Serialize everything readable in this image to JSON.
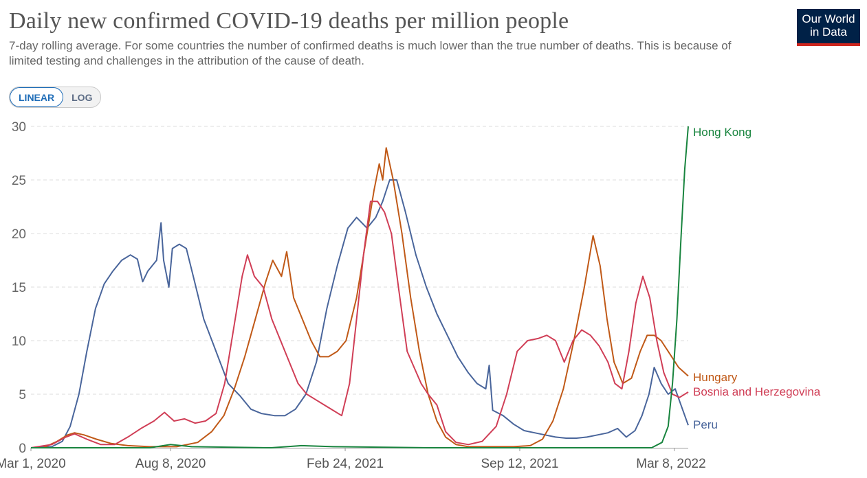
{
  "header": {
    "title": "Daily new confirmed COVID-19 deaths per million people",
    "subtitle": "7-day rolling average. For some countries the number of confirmed deaths is much lower than the true number of deaths. This is because of limited testing and challenges in the attribution of the cause of death."
  },
  "logo": {
    "line1": "Our World",
    "line2": "in Data"
  },
  "scale_toggle": {
    "linear_label": "LINEAR",
    "log_label": "LOG",
    "selected": "LINEAR"
  },
  "colors": {
    "Hong Kong": "#18843e",
    "Hungary": "#c05917",
    "Bosnia and Herzegovina": "#d03e56",
    "Peru": "#49659b",
    "grid": "#dddddd"
  },
  "chart_data": {
    "type": "line",
    "title": "Daily new confirmed COVID-19 deaths per million people",
    "x_axis": {
      "type": "date",
      "range": [
        "2020-03-01",
        "2022-03-24"
      ],
      "tick_labels": [
        "Mar 1, 2020",
        "Aug 8, 2020",
        "Feb 24, 2021",
        "Sep 12, 2021",
        "Mar 8, 2022"
      ],
      "tick_dates": [
        "2020-03-01",
        "2020-08-08",
        "2021-02-24",
        "2021-09-12",
        "2022-03-08"
      ]
    },
    "y_axis": {
      "range": [
        0,
        30
      ],
      "ticks": [
        0,
        5,
        10,
        15,
        20,
        25,
        30
      ]
    },
    "grid": "horizontal dashed",
    "legend": "inline labels at line ends (right)",
    "series": [
      {
        "name": "Peru",
        "points": [
          [
            "2020-03-01",
            0
          ],
          [
            "2020-03-25",
            0.1
          ],
          [
            "2020-04-06",
            0.6
          ],
          [
            "2020-04-15",
            2
          ],
          [
            "2020-04-25",
            5
          ],
          [
            "2020-05-04",
            9
          ],
          [
            "2020-05-14",
            13
          ],
          [
            "2020-05-24",
            15.3
          ],
          [
            "2020-06-03",
            16.5
          ],
          [
            "2020-06-13",
            17.5
          ],
          [
            "2020-06-23",
            18
          ],
          [
            "2020-07-01",
            17.6
          ],
          [
            "2020-07-07",
            15.5
          ],
          [
            "2020-07-13",
            16.5
          ],
          [
            "2020-07-23",
            17.5
          ],
          [
            "2020-07-28",
            21
          ],
          [
            "2020-07-31",
            17.5
          ],
          [
            "2020-08-06",
            15
          ],
          [
            "2020-08-10",
            18.6
          ],
          [
            "2020-08-18",
            19
          ],
          [
            "2020-08-26",
            18.6
          ],
          [
            "2020-09-03",
            16
          ],
          [
            "2020-09-15",
            12
          ],
          [
            "2020-09-29",
            9
          ],
          [
            "2020-10-13",
            6
          ],
          [
            "2020-10-27",
            4.8
          ],
          [
            "2020-11-08",
            3.6
          ],
          [
            "2020-11-20",
            3.2
          ],
          [
            "2020-12-05",
            3
          ],
          [
            "2020-12-17",
            3
          ],
          [
            "2020-12-29",
            3.6
          ],
          [
            "2021-01-10",
            5
          ],
          [
            "2021-01-22",
            8
          ],
          [
            "2021-02-03",
            13
          ],
          [
            "2021-02-15",
            17
          ],
          [
            "2021-02-27",
            20.5
          ],
          [
            "2021-03-09",
            21.5
          ],
          [
            "2021-03-21",
            20.5
          ],
          [
            "2021-03-31",
            21.5
          ],
          [
            "2021-04-08",
            23
          ],
          [
            "2021-04-16",
            25
          ],
          [
            "2021-04-24",
            25
          ],
          [
            "2021-05-04",
            22
          ],
          [
            "2021-05-16",
            18
          ],
          [
            "2021-05-28",
            15
          ],
          [
            "2021-06-09",
            12.5
          ],
          [
            "2021-06-21",
            10.5
          ],
          [
            "2021-07-03",
            8.5
          ],
          [
            "2021-07-15",
            7
          ],
          [
            "2021-07-25",
            6
          ],
          [
            "2021-08-04",
            5.5
          ],
          [
            "2021-08-08",
            7.7
          ],
          [
            "2021-08-12",
            3.5
          ],
          [
            "2021-08-24",
            3
          ],
          [
            "2021-09-05",
            2.2
          ],
          [
            "2021-09-17",
            1.6
          ],
          [
            "2021-09-29",
            1.4
          ],
          [
            "2021-10-11",
            1.2
          ],
          [
            "2021-10-23",
            1
          ],
          [
            "2021-11-04",
            0.9
          ],
          [
            "2021-11-16",
            0.9
          ],
          [
            "2021-11-28",
            1
          ],
          [
            "2021-12-10",
            1.2
          ],
          [
            "2021-12-22",
            1.4
          ],
          [
            "2022-01-02",
            1.8
          ],
          [
            "2022-01-12",
            1
          ],
          [
            "2022-01-22",
            1.6
          ],
          [
            "2022-01-30",
            3
          ],
          [
            "2022-02-07",
            5
          ],
          [
            "2022-02-13",
            7.5
          ],
          [
            "2022-02-21",
            6
          ],
          [
            "2022-03-01",
            5
          ],
          [
            "2022-03-09",
            5.5
          ],
          [
            "2022-03-24",
            2.1
          ]
        ]
      },
      {
        "name": "Hungary",
        "points": [
          [
            "2020-03-01",
            0
          ],
          [
            "2020-03-15",
            0
          ],
          [
            "2020-03-31",
            0.6
          ],
          [
            "2020-04-12",
            1.2
          ],
          [
            "2020-04-20",
            1.4
          ],
          [
            "2020-05-01",
            1.2
          ],
          [
            "2020-05-15",
            0.8
          ],
          [
            "2020-06-01",
            0.4
          ],
          [
            "2020-06-20",
            0.2
          ],
          [
            "2020-07-15",
            0.1
          ],
          [
            "2020-08-15",
            0.1
          ],
          [
            "2020-09-08",
            0.5
          ],
          [
            "2020-09-24",
            1.5
          ],
          [
            "2020-10-08",
            3
          ],
          [
            "2020-10-20",
            5.5
          ],
          [
            "2020-11-01",
            8.5
          ],
          [
            "2020-11-13",
            12
          ],
          [
            "2020-11-25",
            15.5
          ],
          [
            "2020-12-03",
            17.5
          ],
          [
            "2020-12-13",
            16
          ],
          [
            "2020-12-19",
            18.3
          ],
          [
            "2020-12-27",
            14
          ],
          [
            "2021-01-06",
            12
          ],
          [
            "2021-01-16",
            10
          ],
          [
            "2021-01-26",
            8.5
          ],
          [
            "2021-02-05",
            8.5
          ],
          [
            "2021-02-15",
            9
          ],
          [
            "2021-02-25",
            10
          ],
          [
            "2021-03-09",
            14
          ],
          [
            "2021-03-19",
            19
          ],
          [
            "2021-03-29",
            24
          ],
          [
            "2021-04-04",
            26.5
          ],
          [
            "2021-04-08",
            25
          ],
          [
            "2021-04-12",
            28
          ],
          [
            "2021-04-20",
            25
          ],
          [
            "2021-04-30",
            20
          ],
          [
            "2021-05-10",
            14
          ],
          [
            "2021-05-20",
            9
          ],
          [
            "2021-05-30",
            5
          ],
          [
            "2021-06-09",
            2.5
          ],
          [
            "2021-06-19",
            1
          ],
          [
            "2021-07-01",
            0.3
          ],
          [
            "2021-07-15",
            0.1
          ],
          [
            "2021-08-15",
            0.1
          ],
          [
            "2021-09-05",
            0.1
          ],
          [
            "2021-09-24",
            0.2
          ],
          [
            "2021-10-08",
            0.8
          ],
          [
            "2021-10-20",
            2.5
          ],
          [
            "2021-11-01",
            5.5
          ],
          [
            "2021-11-13",
            10
          ],
          [
            "2021-11-25",
            15
          ],
          [
            "2021-12-05",
            19.8
          ],
          [
            "2021-12-13",
            17
          ],
          [
            "2021-12-21",
            12
          ],
          [
            "2021-12-29",
            8
          ],
          [
            "2022-01-08",
            6
          ],
          [
            "2022-01-18",
            6.5
          ],
          [
            "2022-01-28",
            9
          ],
          [
            "2022-02-05",
            10.5
          ],
          [
            "2022-02-13",
            10.5
          ],
          [
            "2022-02-21",
            10
          ],
          [
            "2022-03-01",
            9
          ],
          [
            "2022-03-13",
            7.5
          ],
          [
            "2022-03-24",
            6.7
          ]
        ]
      },
      {
        "name": "Bosnia and Herzegovina",
        "points": [
          [
            "2020-03-01",
            0
          ],
          [
            "2020-03-25",
            0.3
          ],
          [
            "2020-04-10",
            1
          ],
          [
            "2020-04-20",
            1.3
          ],
          [
            "2020-05-04",
            0.8
          ],
          [
            "2020-05-20",
            0.3
          ],
          [
            "2020-06-05",
            0.3
          ],
          [
            "2020-06-20",
            1
          ],
          [
            "2020-07-05",
            1.8
          ],
          [
            "2020-07-20",
            2.5
          ],
          [
            "2020-08-01",
            3.3
          ],
          [
            "2020-08-12",
            2.5
          ],
          [
            "2020-08-24",
            2.7
          ],
          [
            "2020-09-05",
            2.3
          ],
          [
            "2020-09-17",
            2.5
          ],
          [
            "2020-09-29",
            3.2
          ],
          [
            "2020-10-09",
            6
          ],
          [
            "2020-10-19",
            11
          ],
          [
            "2020-10-29",
            16
          ],
          [
            "2020-11-04",
            18
          ],
          [
            "2020-11-12",
            16
          ],
          [
            "2020-11-22",
            15
          ],
          [
            "2020-12-02",
            12
          ],
          [
            "2020-12-12",
            10
          ],
          [
            "2020-12-22",
            8
          ],
          [
            "2021-01-01",
            6
          ],
          [
            "2021-01-11",
            5
          ],
          [
            "2021-01-21",
            4.5
          ],
          [
            "2021-01-31",
            4
          ],
          [
            "2021-02-10",
            3.5
          ],
          [
            "2021-02-20",
            3
          ],
          [
            "2021-03-01",
            6
          ],
          [
            "2021-03-09",
            12
          ],
          [
            "2021-03-17",
            18
          ],
          [
            "2021-03-25",
            23
          ],
          [
            "2021-04-02",
            23
          ],
          [
            "2021-04-10",
            22
          ],
          [
            "2021-04-18",
            20
          ],
          [
            "2021-04-26",
            15
          ],
          [
            "2021-05-06",
            9
          ],
          [
            "2021-05-14",
            7.5
          ],
          [
            "2021-05-22",
            6
          ],
          [
            "2021-05-30",
            5
          ],
          [
            "2021-06-09",
            4
          ],
          [
            "2021-06-19",
            1.5
          ],
          [
            "2021-07-01",
            0.5
          ],
          [
            "2021-07-15",
            0.3
          ],
          [
            "2021-07-31",
            0.6
          ],
          [
            "2021-08-16",
            2
          ],
          [
            "2021-08-28",
            5
          ],
          [
            "2021-09-09",
            9
          ],
          [
            "2021-09-21",
            10
          ],
          [
            "2021-10-03",
            10.2
          ],
          [
            "2021-10-13",
            10.5
          ],
          [
            "2021-10-23",
            10
          ],
          [
            "2021-11-02",
            8
          ],
          [
            "2021-11-12",
            10
          ],
          [
            "2021-11-22",
            11
          ],
          [
            "2021-12-02",
            10.5
          ],
          [
            "2021-12-12",
            9.5
          ],
          [
            "2021-12-22",
            8
          ],
          [
            "2021-12-30",
            6
          ],
          [
            "2022-01-07",
            5.5
          ],
          [
            "2022-01-15",
            9
          ],
          [
            "2022-01-23",
            13.5
          ],
          [
            "2022-01-31",
            16
          ],
          [
            "2022-02-08",
            14
          ],
          [
            "2022-02-16",
            10
          ],
          [
            "2022-02-24",
            7
          ],
          [
            "2022-03-06",
            5
          ],
          [
            "2022-03-14",
            4.7
          ],
          [
            "2022-03-24",
            5.2
          ]
        ]
      },
      {
        "name": "Hong Kong",
        "points": [
          [
            "2020-03-01",
            0
          ],
          [
            "2020-07-15",
            0
          ],
          [
            "2020-08-08",
            0.3
          ],
          [
            "2020-09-01",
            0.1
          ],
          [
            "2020-12-01",
            0
          ],
          [
            "2021-01-05",
            0.2
          ],
          [
            "2021-02-10",
            0.1
          ],
          [
            "2021-06-01",
            0
          ],
          [
            "2022-02-10",
            0
          ],
          [
            "2022-02-22",
            0.5
          ],
          [
            "2022-03-01",
            2
          ],
          [
            "2022-03-06",
            6
          ],
          [
            "2022-03-11",
            12
          ],
          [
            "2022-03-16",
            20
          ],
          [
            "2022-03-20",
            26
          ],
          [
            "2022-03-24",
            30
          ]
        ]
      }
    ]
  }
}
